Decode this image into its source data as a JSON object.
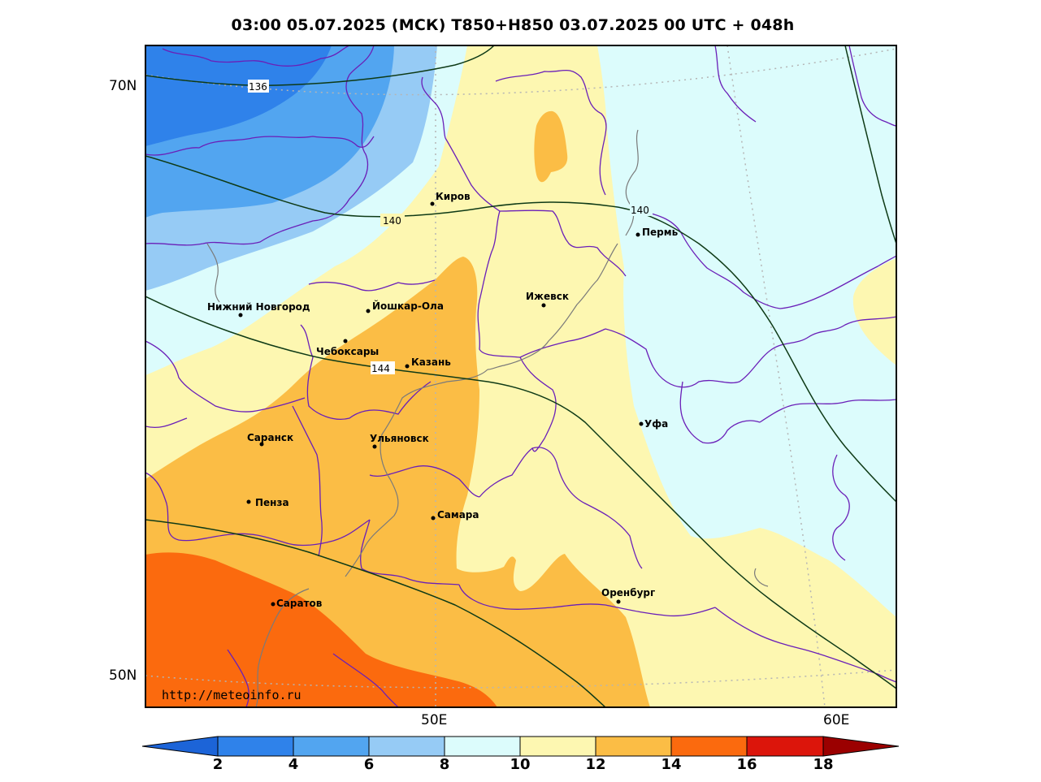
{
  "title": "03:00 05.07.2025 (МСК) T850+H850 03.07.2025 00 UTC + 048h",
  "url": "http://meteoinfo.ru",
  "lat_labels": [
    "70N",
    "50N"
  ],
  "lon_labels": [
    "50E",
    "60E"
  ],
  "isohypse_labels": [
    "136",
    "140",
    "140",
    "144"
  ],
  "cities": [
    {
      "name": "Киров"
    },
    {
      "name": "Пермь"
    },
    {
      "name": "Нижний Новгород"
    },
    {
      "name": "Йошкар-Ола"
    },
    {
      "name": "Ижевск"
    },
    {
      "name": "Чебоксары"
    },
    {
      "name": "Казань"
    },
    {
      "name": "Уфа"
    },
    {
      "name": "Саранск"
    },
    {
      "name": "Ульяновск"
    },
    {
      "name": "Пенза"
    },
    {
      "name": "Самара"
    },
    {
      "name": "Оренбург"
    },
    {
      "name": "Саратов"
    }
  ],
  "colorbar": {
    "ticks": [
      "2",
      "4",
      "6",
      "8",
      "10",
      "12",
      "14",
      "16",
      "18"
    ],
    "colors": [
      "#1c64d8",
      "#2f82ea",
      "#52a5f0",
      "#96cbf5",
      "#dcfcfc",
      "#fdf7b1",
      "#fbbd45",
      "#fb6a0e",
      "#dc150b",
      "#9b0000"
    ]
  },
  "colors": {
    "border": "#6a1fb8",
    "isohypse": "#0e3a16",
    "river": "#7a7a7a"
  }
}
